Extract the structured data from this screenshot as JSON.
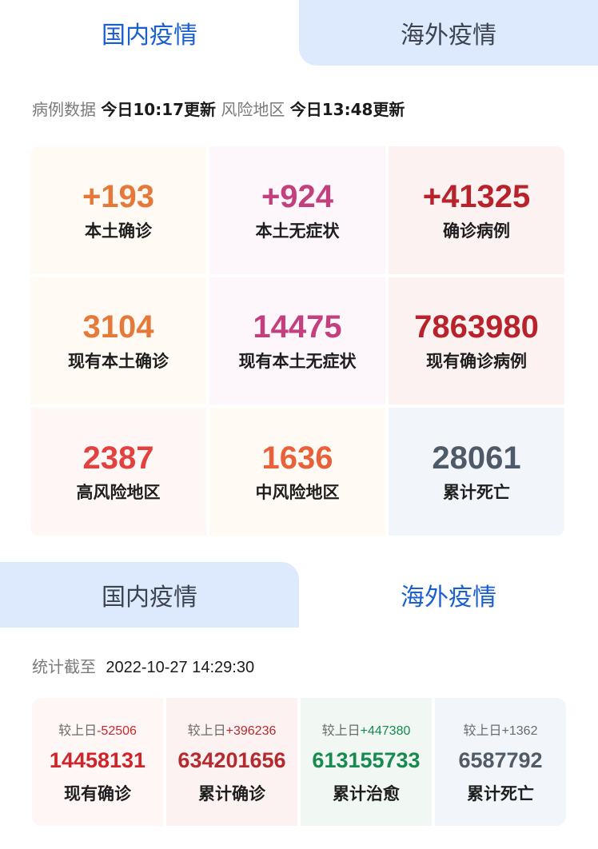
{
  "tabs_top": [
    {
      "label": "国内疫情",
      "active": true
    },
    {
      "label": "海外疫情",
      "active": false
    }
  ],
  "domestic_update": {
    "case_label": "病例数据",
    "case_time": "今日10:17更新",
    "risk_label": "风险地区",
    "risk_time": "今日13:48更新"
  },
  "domestic_stats": [
    {
      "value": "+193",
      "label": "本土确诊",
      "color": "#e4793a",
      "bg": "#fffaf4"
    },
    {
      "value": "+924",
      "label": "本土无症状",
      "color": "#c3407f",
      "bg": "#fdf6fb"
    },
    {
      "value": "+41325",
      "label": "确诊病例",
      "color": "#b8232b",
      "bg": "#fdf2f2"
    },
    {
      "value": "3104",
      "label": "现有本土确诊",
      "color": "#e4793a",
      "bg": "#fffaf4"
    },
    {
      "value": "14475",
      "label": "现有本土无症状",
      "color": "#c3407f",
      "bg": "#fdf6fb"
    },
    {
      "value": "7863980",
      "label": "现有确诊病例",
      "color": "#b8232b",
      "bg": "#fdf2f2"
    },
    {
      "value": "2387",
      "label": "高风险地区",
      "color": "#e3413f",
      "bg": "#fff6f6"
    },
    {
      "value": "1636",
      "label": "中风险地区",
      "color": "#e8613a",
      "bg": "#fffaf4"
    },
    {
      "value": "28061",
      "label": "累计死亡",
      "color": "#4e5a68",
      "bg": "#f2f6fa"
    }
  ],
  "tabs_bottom": [
    {
      "label": "国内疫情",
      "active": false
    },
    {
      "label": "海外疫情",
      "active": true
    }
  ],
  "overseas_update": {
    "label": "统计截至",
    "time": "2022-10-27 14:29:30"
  },
  "overseas_stats": [
    {
      "delta_label": "较上日",
      "delta": "-52506",
      "value": "14458131",
      "label": "现有确诊",
      "color": "#d0242b",
      "delta_color": "#d0242b",
      "bg": "#fff6f6"
    },
    {
      "delta_label": "较上日",
      "delta": "+396236",
      "value": "634201656",
      "label": "累计确诊",
      "color": "#b52a2e",
      "delta_color": "#b52a2e",
      "bg": "#fdf2f2"
    },
    {
      "delta_label": "较上日",
      "delta": "+447380",
      "value": "613155733",
      "label": "累计治愈",
      "color": "#168a4f",
      "delta_color": "#168a4f",
      "bg": "#f1f7f3"
    },
    {
      "delta_label": "较上日",
      "delta": "+1362",
      "value": "6587792",
      "label": "累计死亡",
      "color": "#505b66",
      "delta_color": "#6a6a6a",
      "bg": "#f2f6fa"
    }
  ]
}
